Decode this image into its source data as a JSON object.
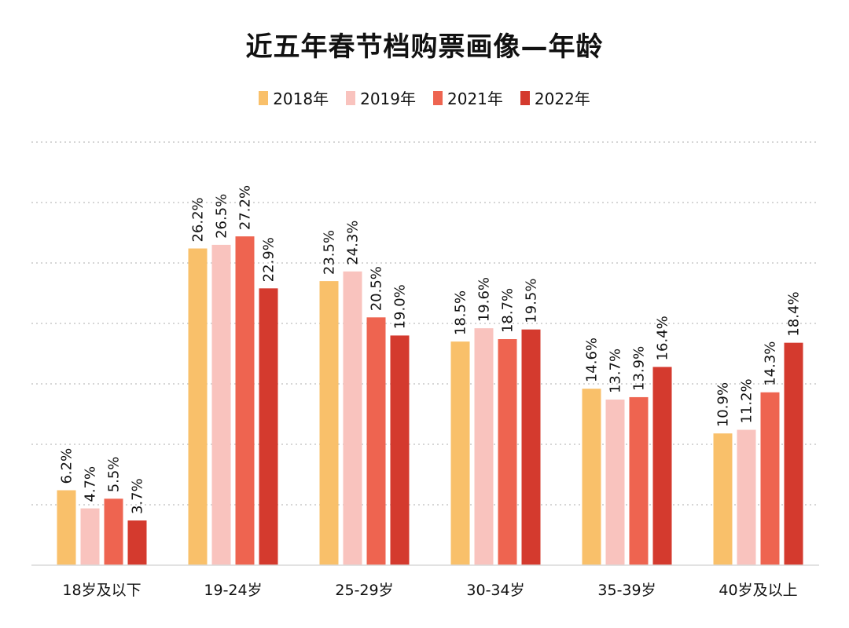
{
  "chart_data": {
    "type": "bar",
    "title": "近五年春节档购票画像—年龄",
    "xlabel": "",
    "ylabel": "",
    "ylim": [
      0,
      35
    ],
    "grid": true,
    "legend_position": "top-center",
    "categories": [
      "18岁及以下",
      "19-24岁",
      "25-29岁",
      "30-34岁",
      "35-39岁",
      "40岁及以上"
    ],
    "series": [
      {
        "name": "2018年",
        "color": "#F9C06A",
        "values": [
          6.2,
          26.2,
          23.5,
          18.5,
          14.6,
          10.9
        ],
        "labels": [
          "6.2%",
          "26.2%",
          "23.5%",
          "18.5%",
          "14.6%",
          "10.9%"
        ]
      },
      {
        "name": "2019年",
        "color": "#F9C3BE",
        "values": [
          4.7,
          26.5,
          24.3,
          19.6,
          13.7,
          11.2
        ],
        "labels": [
          "4.7%",
          "26.5%",
          "24.3%",
          "19.6%",
          "13.7%",
          "11.2%"
        ]
      },
      {
        "name": "2021年",
        "color": "#EE6450",
        "values": [
          5.5,
          27.2,
          20.5,
          18.7,
          13.9,
          14.3
        ],
        "labels": [
          "5.5%",
          "27.2%",
          "20.5%",
          "18.7%",
          "13.9%",
          "14.3%"
        ]
      },
      {
        "name": "2022年",
        "color": "#D43A2E",
        "values": [
          3.7,
          22.9,
          19.0,
          19.5,
          16.4,
          18.4
        ],
        "labels": [
          "3.7%",
          "22.9%",
          "19.0%",
          "19.5%",
          "16.4%",
          "18.4%"
        ]
      }
    ]
  }
}
